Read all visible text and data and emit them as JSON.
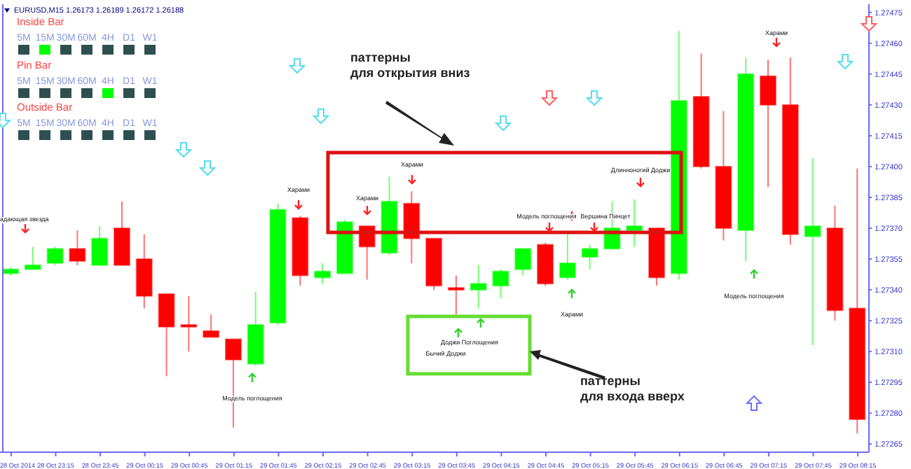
{
  "chart_data": {
    "type": "candlestick",
    "title": "EURUSD,M15  1.26173 1.26189 1.26172 1.26188",
    "categories": [
      "28 Oct 2014",
      null,
      "28 Oct 23:15",
      null,
      "28 Oct 23:45",
      null,
      "29 Oct 00:15",
      null,
      "29 Oct 00:45",
      null,
      "29 Oct 01:15",
      null,
      "29 Oct 01:45",
      null,
      "29 Oct 02:15",
      null,
      "29 Oct 02:45",
      null,
      "29 Oct 03:15",
      null,
      "29 Oct 03:45",
      null,
      "29 Oct 04:15",
      null,
      "29 Oct 04:45",
      null,
      "29 Oct 05:15",
      null,
      "29 Oct 05:45",
      null,
      "29 Oct 06:15",
      null,
      "29 Oct 06:45",
      null,
      "29 Oct 07:15",
      null,
      "29 Oct 07:45",
      null,
      "29 Oct 08:15"
    ],
    "ohlc": [
      [
        1.27348,
        1.27351,
        1.27347,
        1.2735
      ],
      [
        1.2735,
        1.27361,
        1.2735,
        1.27352
      ],
      [
        1.27353,
        1.27361,
        1.27352,
        1.2736
      ],
      [
        1.2736,
        1.27369,
        1.27352,
        1.27354
      ],
      [
        1.27352,
        1.27371,
        1.27352,
        1.27365
      ],
      [
        1.2737,
        1.27383,
        1.27352,
        1.27352
      ],
      [
        1.27355,
        1.27367,
        1.27331,
        1.27337
      ],
      [
        1.27338,
        1.27338,
        1.27298,
        1.27322
      ],
      [
        1.27323,
        1.27337,
        1.2731,
        1.27322
      ],
      [
        1.2732,
        1.27328,
        1.27317,
        1.27317
      ],
      [
        1.27316,
        1.27316,
        1.27273,
        1.27306
      ],
      [
        1.27304,
        1.27339,
        1.27303,
        1.27323
      ],
      [
        1.27324,
        1.27382,
        1.27323,
        1.27379
      ],
      [
        1.27375,
        1.27376,
        1.27342,
        1.27347
      ],
      [
        1.27346,
        1.27353,
        1.27343,
        1.27349
      ],
      [
        1.27348,
        1.27374,
        1.27348,
        1.27373
      ],
      [
        1.27371,
        1.27371,
        1.27345,
        1.27361
      ],
      [
        1.27358,
        1.27395,
        1.27357,
        1.27383
      ],
      [
        1.27382,
        1.27388,
        1.27353,
        1.27365
      ],
      [
        1.27365,
        1.27365,
        1.2734,
        1.27342
      ],
      [
        1.27341,
        1.27347,
        1.27328,
        1.2734
      ],
      [
        1.2734,
        1.27352,
        1.27331,
        1.27343
      ],
      [
        1.27342,
        1.2735,
        1.27336,
        1.27349
      ],
      [
        1.2735,
        1.2736,
        1.27347,
        1.2736
      ],
      [
        1.27362,
        1.27363,
        1.27342,
        1.27343
      ],
      [
        1.27346,
        1.27367,
        1.27345,
        1.27353
      ],
      [
        1.27356,
        1.27362,
        1.2735,
        1.2736
      ],
      [
        1.2736,
        1.27383,
        1.2736,
        1.2737
      ],
      [
        1.27369,
        1.27384,
        1.27361,
        1.27371
      ],
      [
        1.2737,
        1.2737,
        1.27342,
        1.27346
      ],
      [
        1.27348,
        1.27466,
        1.27345,
        1.27432
      ],
      [
        1.27434,
        1.27455,
        1.27399,
        1.274
      ],
      [
        1.274,
        1.27427,
        1.27364,
        1.2737
      ],
      [
        1.27369,
        1.27453,
        1.27354,
        1.27445
      ],
      [
        1.27444,
        1.27452,
        1.2739,
        1.2743
      ],
      [
        1.2743,
        1.27453,
        1.27362,
        1.27367
      ],
      [
        1.27366,
        1.27404,
        1.27313,
        1.27371
      ],
      [
        1.2737,
        1.27381,
        1.27325,
        1.2733
      ],
      [
        1.27331,
        1.27399,
        1.2727,
        1.27277
      ]
    ],
    "colors": [
      "#00ff00",
      "#00ff00",
      "#00ff00",
      "#ff0000",
      "#00ff00",
      "#ff0000",
      "#ff0000",
      "#ff0000",
      "#ff0000",
      "#ff0000",
      "#ff0000",
      "#00ff00",
      "#00ff00",
      "#ff0000",
      "#00ff00",
      "#00ff00",
      "#ff0000",
      "#00ff00",
      "#ff0000",
      "#ff0000",
      "#ff0000",
      "#00ff00",
      "#00ff00",
      "#00ff00",
      "#ff0000",
      "#00ff00",
      "#00ff00",
      "#00ff00",
      "#00ff00",
      "#ff0000",
      "#00ff00",
      "#ff0000",
      "#ff0000",
      "#00ff00",
      "#ff0000",
      "#ff0000",
      "#00ff00",
      "#ff0000",
      "#ff0000"
    ],
    "ylim": [
      1.27261,
      1.27479
    ],
    "yticks": [
      {
        "value": 1.27265,
        "label": "1.27265"
      },
      {
        "value": 1.2728,
        "label": "1.27280"
      },
      {
        "value": 1.27295,
        "label": "1.27295"
      },
      {
        "value": 1.2731,
        "label": "1.27310"
      },
      {
        "value": 1.27325,
        "label": "1.27325"
      },
      {
        "value": 1.2734,
        "label": "1.27340"
      },
      {
        "value": 1.27355,
        "label": "1.27355"
      },
      {
        "value": 1.2737,
        "label": "1.27370"
      },
      {
        "value": 1.27385,
        "label": "1.27385"
      },
      {
        "value": 1.274,
        "label": "1.27400"
      },
      {
        "value": 1.27415,
        "label": "1.27415"
      },
      {
        "value": 1.2743,
        "label": "1.27430"
      },
      {
        "value": 1.27445,
        "label": "1.27445"
      },
      {
        "value": 1.2746,
        "label": "1.27460"
      },
      {
        "value": 1.27475,
        "label": "1.27475"
      }
    ],
    "annotations": [
      "Inside Bar",
      "5M 15M 30M 60M 4H D1 W1",
      "Pin Bar",
      "5M 15M 30M 60M 4H D1 W1",
      "Outside Bar",
      "5M 15M 30M 60M 4H D1 W1",
      "адающая звезда",
      "Харами",
      "Харами",
      "Харами",
      "Модель поглощения",
      "Доджи Поглощения",
      "Бычий Доджи",
      "Харами",
      "Модель поглощения",
      "Вершина Пинцет",
      "Длинноногий Доджи",
      "Модель поглощения",
      "Харами",
      "паттерны\nдля открытия вниз",
      "паттерны\nдля входа вверх"
    ]
  }
}
